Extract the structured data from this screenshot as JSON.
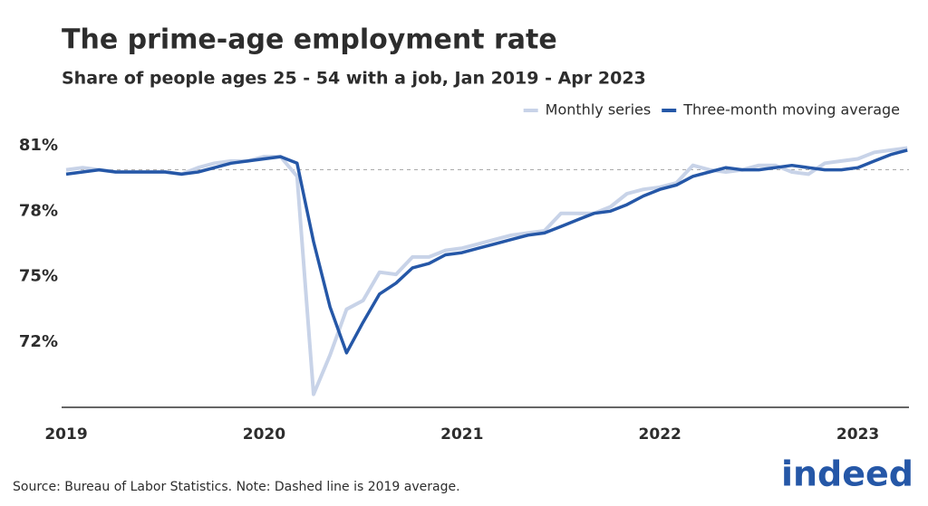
{
  "chart_data": {
    "type": "line",
    "title": "The prime-age employment rate",
    "subtitle": "Share of people ages 25 - 54 with a job, Jan 2019 - Apr 2023",
    "source": "Source: Bureau of Labor Statistics. Note: Dashed line is 2019 average.",
    "logo": "indeed",
    "categories": [
      "2019",
      null,
      null,
      null,
      null,
      null,
      null,
      null,
      null,
      null,
      null,
      null,
      "2020",
      null,
      null,
      null,
      null,
      null,
      null,
      null,
      null,
      null,
      null,
      null,
      "2021",
      null,
      null,
      null,
      null,
      null,
      null,
      null,
      null,
      null,
      null,
      null,
      "2022",
      null,
      null,
      null,
      null,
      null,
      null,
      null,
      null,
      null,
      null,
      null,
      "2023",
      null,
      null,
      null
    ],
    "series": [
      {
        "name": "Monthly series",
        "color": "#c8d3e8",
        "values": [
          79.9,
          80.0,
          79.9,
          79.8,
          79.8,
          79.8,
          79.8,
          79.7,
          80.0,
          80.2,
          80.3,
          80.3,
          80.5,
          80.5,
          79.6,
          69.6,
          71.4,
          73.5,
          73.9,
          75.2,
          75.1,
          75.9,
          75.9,
          76.2,
          76.3,
          76.5,
          76.7,
          76.9,
          77.0,
          77.1,
          77.9,
          77.9,
          77.9,
          78.2,
          78.8,
          79.0,
          79.1,
          79.3,
          80.1,
          79.9,
          79.8,
          79.9,
          80.1,
          80.1,
          79.8,
          79.7,
          80.2,
          80.3,
          80.4,
          80.7,
          80.8,
          80.9
        ]
      },
      {
        "name": "Three-month moving average",
        "color": "#2557a7",
        "values": [
          79.7,
          79.8,
          79.9,
          79.8,
          79.8,
          79.8,
          79.8,
          79.7,
          79.8,
          80.0,
          80.2,
          80.3,
          80.4,
          80.5,
          80.2,
          76.6,
          73.6,
          71.5,
          72.9,
          74.2,
          74.7,
          75.4,
          75.6,
          76.0,
          76.1,
          76.3,
          76.5,
          76.7,
          76.9,
          77.0,
          77.3,
          77.6,
          77.9,
          78.0,
          78.3,
          78.7,
          79.0,
          79.2,
          79.6,
          79.8,
          80.0,
          79.9,
          79.9,
          80.0,
          80.1,
          80.0,
          79.9,
          79.9,
          80.0,
          80.3,
          80.6,
          80.8
        ]
      }
    ],
    "reference_value": 79.9,
    "ylim": [
      69,
      82
    ],
    "yticks": [
      {
        "value": 72,
        "label": "72%"
      },
      {
        "value": 75,
        "label": "75%"
      },
      {
        "value": 78,
        "label": "78%"
      },
      {
        "value": 81,
        "label": "81%"
      }
    ],
    "grid": false,
    "legend": "top-right"
  }
}
